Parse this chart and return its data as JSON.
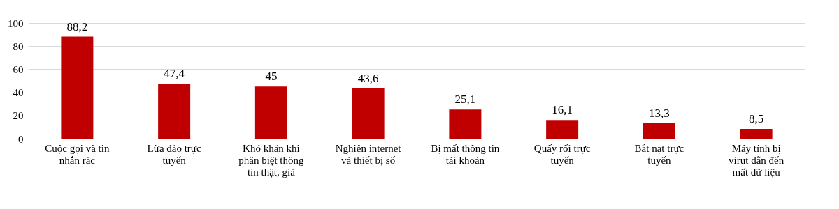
{
  "chart_data": {
    "type": "bar",
    "categories": [
      "Cuộc gọi và tin nhắn rác",
      "Lừa đảo trực tuyến",
      "Khó khăn khi phân biệt thông tin thật, giả",
      "Nghiện internet và thiết bị số",
      "Bị mất thông tin tài khoản",
      "Quấy rối trực tuyến",
      "Bắt nạt trực tuyến",
      "Máy tính bị virut dẫn đến mất dữ liệu"
    ],
    "values": [
      88.2,
      47.4,
      45,
      43.6,
      25.1,
      16.1,
      13.3,
      8.5
    ],
    "value_labels": [
      "88,2",
      "47,4",
      "45",
      "43,6",
      "25,1",
      "16,1",
      "13,3",
      "8,5"
    ],
    "color": "#c00000",
    "ylim": [
      0,
      100
    ],
    "yticks": [
      0,
      20,
      40,
      60,
      80,
      100
    ],
    "grid": "y"
  }
}
